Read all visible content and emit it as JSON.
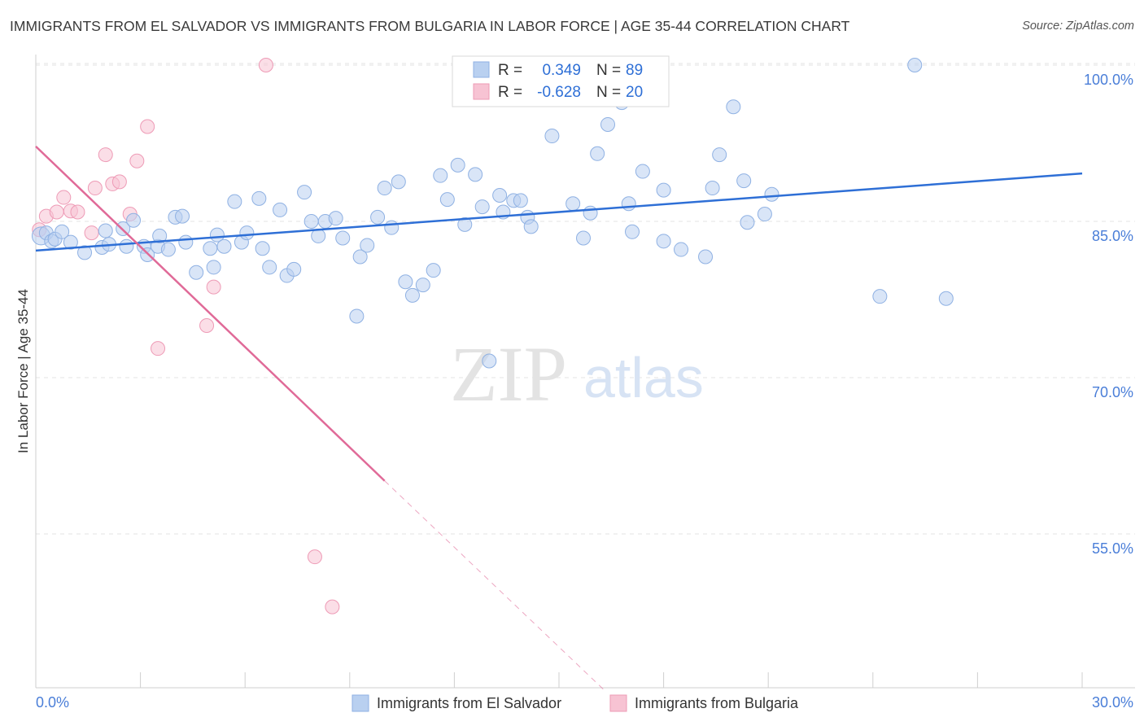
{
  "title": "IMMIGRANTS FROM EL SALVADOR VS IMMIGRANTS FROM BULGARIA IN LABOR FORCE | AGE 35-44 CORRELATION CHART",
  "source": "Source: ZipAtlas.com",
  "watermark": {
    "zip": "ZIP",
    "atlas": "atlas"
  },
  "colors": {
    "blue_fill": "#b9d0f0",
    "blue_stroke": "#8fb1e3",
    "blue_line": "#2e6fd6",
    "pink_fill": "#f7c3d3",
    "pink_stroke": "#ee9bb6",
    "pink_line": "#e06a98",
    "tick_text": "#4a7ed8",
    "grid": "#e3e3e3"
  },
  "legend": {
    "r_label": "R =",
    "n_label": "N =",
    "rows": [
      {
        "r": "0.349",
        "n": "89",
        "color": "blue"
      },
      {
        "r": "-0.628",
        "n": "20",
        "color": "pink"
      }
    ]
  },
  "bottom_legend": [
    "Immigrants from El Salvador",
    "Immigrants from Bulgaria"
  ],
  "chart_data": {
    "type": "scatter",
    "title": "IMMIGRANTS FROM EL SALVADOR VS IMMIGRANTS FROM BULGARIA IN LABOR FORCE | AGE 35-44 CORRELATION CHART",
    "xlabel": "",
    "ylabel": "In Labor Force | Age 35-44",
    "xlim": [
      0,
      30
    ],
    "ylim": [
      40,
      102
    ],
    "x_tick_labels": [
      "0.0%",
      "30.0%"
    ],
    "y_tick_values": [
      100,
      85,
      70,
      55
    ],
    "y_tick_labels": [
      "100.0%",
      "85.0%",
      "70.0%",
      "55.0%"
    ],
    "grid": true,
    "series": [
      {
        "name": "Immigrants from El Salvador",
        "color": "blue",
        "r": 0.349,
        "n": 89,
        "trendline": {
          "x": [
            0,
            30
          ],
          "y": [
            82.2,
            89.6
          ]
        },
        "points": [
          [
            0.15,
            83.6
          ],
          [
            0.3,
            83.9
          ],
          [
            0.45,
            83.1
          ],
          [
            0.55,
            83.3
          ],
          [
            0.75,
            84.0
          ],
          [
            1.0,
            83.0
          ],
          [
            1.4,
            82.0
          ],
          [
            1.9,
            82.5
          ],
          [
            2.0,
            84.1
          ],
          [
            2.1,
            82.8
          ],
          [
            2.5,
            84.3
          ],
          [
            2.6,
            82.6
          ],
          [
            2.8,
            85.1
          ],
          [
            3.1,
            82.6
          ],
          [
            3.2,
            81.8
          ],
          [
            3.5,
            82.6
          ],
          [
            3.55,
            83.6
          ],
          [
            3.8,
            82.3
          ],
          [
            4.0,
            85.4
          ],
          [
            4.2,
            85.5
          ],
          [
            4.3,
            83.0
          ],
          [
            4.6,
            80.1
          ],
          [
            5.0,
            82.4
          ],
          [
            5.1,
            80.6
          ],
          [
            5.2,
            83.7
          ],
          [
            5.4,
            82.6
          ],
          [
            5.7,
            86.9
          ],
          [
            5.9,
            83.0
          ],
          [
            6.05,
            83.9
          ],
          [
            6.4,
            87.2
          ],
          [
            6.5,
            82.4
          ],
          [
            6.7,
            80.6
          ],
          [
            7.0,
            86.1
          ],
          [
            7.2,
            79.8
          ],
          [
            7.4,
            80.4
          ],
          [
            7.7,
            87.8
          ],
          [
            7.9,
            85.0
          ],
          [
            8.1,
            83.6
          ],
          [
            8.3,
            85.0
          ],
          [
            8.6,
            85.3
          ],
          [
            8.8,
            83.4
          ],
          [
            9.2,
            75.9
          ],
          [
            9.3,
            81.6
          ],
          [
            9.5,
            82.7
          ],
          [
            9.8,
            85.4
          ],
          [
            10.0,
            88.2
          ],
          [
            10.2,
            84.4
          ],
          [
            10.4,
            88.8
          ],
          [
            10.6,
            79.2
          ],
          [
            10.8,
            77.9
          ],
          [
            11.1,
            78.9
          ],
          [
            11.4,
            80.3
          ],
          [
            11.6,
            89.4
          ],
          [
            11.8,
            87.1
          ],
          [
            12.1,
            90.4
          ],
          [
            12.3,
            84.7
          ],
          [
            12.6,
            89.5
          ],
          [
            12.8,
            86.4
          ],
          [
            13.0,
            71.6
          ],
          [
            13.3,
            87.5
          ],
          [
            13.4,
            85.9
          ],
          [
            13.7,
            87.0
          ],
          [
            13.9,
            87.0
          ],
          [
            14.1,
            85.4
          ],
          [
            14.2,
            84.5
          ],
          [
            14.8,
            93.2
          ],
          [
            15.4,
            86.7
          ],
          [
            15.7,
            83.4
          ],
          [
            15.9,
            85.8
          ],
          [
            16.1,
            91.5
          ],
          [
            16.4,
            94.3
          ],
          [
            16.8,
            96.4
          ],
          [
            17.0,
            86.7
          ],
          [
            17.1,
            84.0
          ],
          [
            17.4,
            89.8
          ],
          [
            18.0,
            88.0
          ],
          [
            18.0,
            83.1
          ],
          [
            18.5,
            82.3
          ],
          [
            19.2,
            81.6
          ],
          [
            19.4,
            88.2
          ],
          [
            19.6,
            91.4
          ],
          [
            20.0,
            96.0
          ],
          [
            20.3,
            88.9
          ],
          [
            20.4,
            84.9
          ],
          [
            20.9,
            85.7
          ],
          [
            21.1,
            87.6
          ],
          [
            24.2,
            77.8
          ],
          [
            25.2,
            100.0
          ],
          [
            26.1,
            77.6
          ]
        ]
      },
      {
        "name": "Immigrants from Bulgaria",
        "color": "pink",
        "r": -0.628,
        "n": 20,
        "trendline": {
          "x": [
            0,
            10
          ],
          "y": [
            92.2,
            60.1
          ]
        },
        "trendline_dashed": {
          "x": [
            10,
            16.3
          ],
          "y": [
            60.1,
            40
          ]
        },
        "points": [
          [
            0.1,
            84.2
          ],
          [
            0.3,
            85.5
          ],
          [
            0.6,
            85.9
          ],
          [
            0.8,
            87.3
          ],
          [
            1.0,
            86.0
          ],
          [
            1.2,
            85.9
          ],
          [
            1.6,
            83.9
          ],
          [
            1.7,
            88.2
          ],
          [
            2.0,
            91.4
          ],
          [
            2.2,
            88.6
          ],
          [
            2.4,
            88.8
          ],
          [
            2.7,
            85.7
          ],
          [
            2.9,
            90.8
          ],
          [
            3.2,
            94.1
          ],
          [
            3.5,
            72.8
          ],
          [
            5.1,
            78.7
          ],
          [
            6.6,
            100.0
          ],
          [
            8.0,
            52.8
          ],
          [
            8.5,
            48.0
          ],
          [
            4.9,
            75.0
          ]
        ]
      }
    ]
  }
}
